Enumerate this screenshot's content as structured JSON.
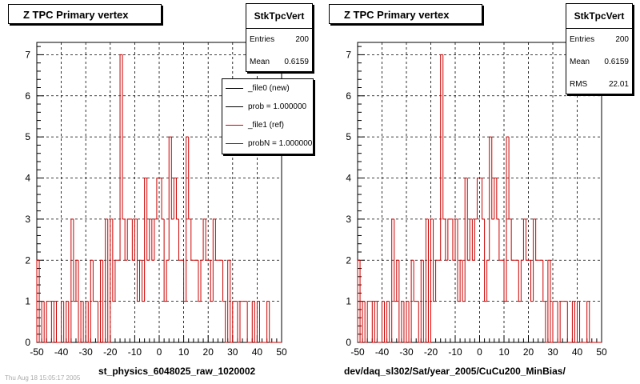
{
  "footer_text": "Thu Aug 18 15:05:17 2005",
  "chart_data": [
    {
      "type": "step-histogram",
      "title": "Z TPC Primary vertex",
      "xlabel": "st_physics_6048025_raw_1020002",
      "xlim": [
        -50,
        50
      ],
      "ylim": [
        0,
        7.3
      ],
      "xticks": [
        "-50",
        "-40",
        "-30",
        "-20",
        "-10",
        "0",
        "10",
        "20",
        "30",
        "40",
        "50"
      ],
      "yticks": [
        "0",
        "1",
        "2",
        "3",
        "4",
        "5",
        "6",
        "7"
      ],
      "grid": true,
      "stats": {
        "name": "StkTpcVert",
        "rows": [
          {
            "label": "Entries",
            "value": "200"
          },
          {
            "label": "Mean",
            "value": "0.6159"
          }
        ]
      },
      "legend": {
        "placement": "top-right",
        "entries": [
          {
            "label": "_file0 (new)",
            "color": "#000000"
          },
          {
            "label": "prob = 1.000000",
            "color": "#000000"
          },
          {
            "label": "_file1 (ref)",
            "color": "#cc0000"
          },
          {
            "label": "probN = 1.000000",
            "color": "#cc0000"
          }
        ]
      },
      "series": [
        {
          "color": "#cc0000",
          "bin_edges": [
            -50,
            -49,
            -48,
            -47,
            -46,
            -45,
            -44,
            -43,
            -42,
            -41,
            -40,
            -39,
            -38,
            -37,
            -36,
            -35,
            -34,
            -33,
            -32,
            -31,
            -30,
            -29,
            -28,
            -27,
            -26,
            -25,
            -24,
            -23,
            -22,
            -21,
            -20,
            -19,
            -18,
            -17,
            -16,
            -15,
            -14,
            -13,
            -12,
            -11,
            -10,
            -9,
            -8,
            -7,
            -6,
            -5,
            -4,
            -3,
            -2,
            -1,
            0,
            1,
            2,
            3,
            4,
            5,
            6,
            7,
            8,
            9,
            10,
            11,
            12,
            13,
            14,
            15,
            16,
            17,
            18,
            19,
            20,
            21,
            22,
            23,
            24,
            25,
            26,
            27,
            28,
            29,
            30,
            31,
            32,
            33,
            34,
            35,
            36,
            37,
            38,
            39,
            40,
            41,
            42,
            43,
            44,
            45,
            46,
            47,
            48,
            49,
            50
          ],
          "values": [
            2,
            0,
            1,
            0,
            1,
            1,
            0,
            1,
            0,
            0,
            1,
            0,
            1,
            0,
            3,
            1,
            2,
            0,
            1,
            0,
            1,
            0,
            2,
            1,
            1,
            0,
            2,
            0,
            3,
            0,
            3,
            1,
            2,
            2,
            7,
            3,
            2,
            3,
            3,
            2,
            3,
            1,
            2,
            1,
            4,
            2,
            3,
            2,
            3,
            4,
            4,
            3,
            1,
            2,
            5,
            3,
            4,
            3,
            2,
            2,
            1,
            5,
            3,
            2,
            2,
            2,
            1,
            2,
            3,
            2,
            2,
            1,
            3,
            2,
            2,
            2,
            1,
            0,
            2,
            0,
            1,
            1,
            0,
            1,
            1,
            1,
            0,
            0,
            1,
            0,
            1,
            0,
            0,
            0,
            1,
            0,
            0,
            0,
            0,
            0
          ]
        }
      ]
    },
    {
      "type": "step-histogram",
      "title": "Z TPC Primary vertex",
      "xlabel": "dev/daq_sl302/Sat/year_2005/CuCu200_MinBias/",
      "xlim": [
        -50,
        50
      ],
      "ylim": [
        0,
        7.3
      ],
      "xticks": [
        "-50",
        "-40",
        "-30",
        "-20",
        "-10",
        "0",
        "10",
        "20",
        "30",
        "40",
        "50"
      ],
      "yticks": [
        "0",
        "1",
        "2",
        "3",
        "4",
        "5",
        "6",
        "7"
      ],
      "grid": true,
      "stats": {
        "name": "StkTpcVert",
        "rows": [
          {
            "label": "Entries",
            "value": "200"
          },
          {
            "label": "Mean",
            "value": "0.6159"
          },
          {
            "label": "RMS",
            "value": "22.01"
          }
        ]
      },
      "series": [
        {
          "color": "#cc0000",
          "bin_edges": [
            -50,
            -49,
            -48,
            -47,
            -46,
            -45,
            -44,
            -43,
            -42,
            -41,
            -40,
            -39,
            -38,
            -37,
            -36,
            -35,
            -34,
            -33,
            -32,
            -31,
            -30,
            -29,
            -28,
            -27,
            -26,
            -25,
            -24,
            -23,
            -22,
            -21,
            -20,
            -19,
            -18,
            -17,
            -16,
            -15,
            -14,
            -13,
            -12,
            -11,
            -10,
            -9,
            -8,
            -7,
            -6,
            -5,
            -4,
            -3,
            -2,
            -1,
            0,
            1,
            2,
            3,
            4,
            5,
            6,
            7,
            8,
            9,
            10,
            11,
            12,
            13,
            14,
            15,
            16,
            17,
            18,
            19,
            20,
            21,
            22,
            23,
            24,
            25,
            26,
            27,
            28,
            29,
            30,
            31,
            32,
            33,
            34,
            35,
            36,
            37,
            38,
            39,
            40,
            41,
            42,
            43,
            44,
            45,
            46,
            47,
            48,
            49,
            50
          ],
          "values": [
            2,
            0,
            1,
            0,
            1,
            1,
            0,
            1,
            0,
            0,
            1,
            0,
            1,
            0,
            3,
            1,
            2,
            0,
            1,
            0,
            1,
            0,
            2,
            1,
            1,
            0,
            2,
            0,
            3,
            0,
            3,
            1,
            2,
            2,
            7,
            3,
            2,
            3,
            3,
            2,
            3,
            1,
            2,
            1,
            4,
            2,
            3,
            2,
            3,
            4,
            4,
            3,
            1,
            2,
            5,
            3,
            4,
            3,
            2,
            2,
            1,
            5,
            3,
            2,
            2,
            2,
            1,
            2,
            3,
            2,
            2,
            1,
            3,
            2,
            2,
            2,
            1,
            0,
            2,
            0,
            1,
            1,
            0,
            1,
            1,
            1,
            0,
            0,
            1,
            0,
            1,
            0,
            0,
            0,
            1,
            0,
            0,
            0,
            0,
            0
          ]
        }
      ]
    }
  ]
}
